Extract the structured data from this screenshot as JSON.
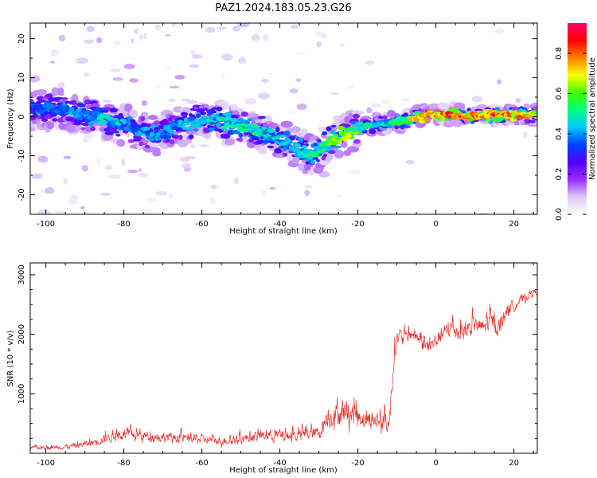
{
  "chart_data": [
    {
      "type": "heatmap",
      "title": "PAZ1.2024.183.05.23.G26",
      "xlabel": "Height of straight line (km)",
      "ylabel": "Frequency (Hz)",
      "xlim": [
        -104,
        26
      ],
      "ylim": [
        -25,
        24
      ],
      "x_ticks": [
        -100,
        -80,
        -60,
        -40,
        -20,
        0,
        20
      ],
      "y_ticks": [
        -20,
        -10,
        0,
        10,
        20
      ],
      "colorbar": {
        "label": "Normalized spectral amplitude",
        "range": [
          0,
          0.95
        ],
        "ticks": [
          0.0,
          0.2,
          0.4,
          0.6,
          0.8
        ],
        "colormap": [
          "#ffffff",
          "#dcc8f5",
          "#9a2cff",
          "#5000ff",
          "#0040ff",
          "#00c8ff",
          "#00ff80",
          "#40ff00",
          "#ffff00",
          "#ff8000",
          "#ff0000",
          "#ff0066"
        ]
      },
      "ridge": {
        "x": [
          -104,
          -100,
          -96,
          -92,
          -88,
          -84,
          -80,
          -76,
          -72,
          -68,
          -64,
          -60,
          -56,
          -52,
          -48,
          -44,
          -40,
          -36,
          -32,
          -30,
          -28,
          -24,
          -20,
          -16,
          -12,
          -8,
          -4,
          0,
          4,
          8,
          12,
          16,
          20,
          24,
          26
        ],
        "y": [
          1.5,
          2,
          2.5,
          1,
          0,
          -1,
          -2,
          -3.5,
          -5,
          -3,
          -2,
          -0.5,
          -1,
          -2,
          -3,
          -4,
          -5.5,
          -7.5,
          -10,
          -9,
          -6.5,
          -5,
          -3,
          -2,
          -1.5,
          -1,
          0,
          0.5,
          0.5,
          0.3,
          0.3,
          0.5,
          0.5,
          0.5,
          0.5
        ],
        "amp": [
          0.35,
          0.38,
          0.4,
          0.42,
          0.45,
          0.48,
          0.45,
          0.42,
          0.45,
          0.42,
          0.45,
          0.45,
          0.48,
          0.5,
          0.55,
          0.5,
          0.45,
          0.48,
          0.5,
          0.52,
          0.6,
          0.72,
          0.6,
          0.5,
          0.5,
          0.65,
          0.8,
          0.85,
          0.88,
          0.82,
          0.88,
          0.85,
          0.82,
          0.75,
          0.7
        ]
      }
    },
    {
      "type": "line",
      "xlabel": "Height of straight line (km)",
      "ylabel": "SNR (10 * v/v)",
      "xlim": [
        -104,
        26
      ],
      "ylim": [
        0,
        3200
      ],
      "x_ticks": [
        -100,
        -80,
        -60,
        -40,
        -20,
        0,
        20
      ],
      "y_ticks": [
        1000,
        2000,
        3000
      ],
      "color": "#e8302a",
      "envelope": {
        "x": [
          -104,
          -96,
          -92,
          -88,
          -84,
          -80,
          -76,
          -72,
          -68,
          -64,
          -60,
          -56,
          -52,
          -48,
          -44,
          -40,
          -36,
          -32,
          -30,
          -28,
          -26,
          -24,
          -22,
          -20,
          -18,
          -16,
          -14,
          -12,
          -11,
          -10,
          -8,
          -6,
          -4,
          -2,
          0,
          2,
          4,
          6,
          8,
          10,
          12,
          14,
          16,
          18,
          20,
          22,
          24,
          26
        ],
        "base": [
          80,
          90,
          110,
          150,
          230,
          280,
          260,
          250,
          230,
          220,
          200,
          180,
          190,
          230,
          260,
          240,
          260,
          280,
          300,
          520,
          560,
          600,
          600,
          560,
          500,
          480,
          460,
          420,
          1400,
          1900,
          1900,
          1950,
          1850,
          1700,
          1850,
          1950,
          2050,
          1950,
          2000,
          2100,
          2050,
          2150,
          2050,
          2350,
          2450,
          2550,
          2650,
          2700
        ],
        "amp": [
          90,
          110,
          150,
          200,
          260,
          300,
          280,
          260,
          260,
          250,
          230,
          220,
          240,
          260,
          280,
          350,
          300,
          320,
          350,
          500,
          650,
          700,
          650,
          600,
          500,
          500,
          550,
          500,
          700,
          400,
          350,
          350,
          380,
          420,
          450,
          420,
          480,
          500,
          480,
          420,
          480,
          500,
          450,
          380,
          300,
          250,
          200,
          150
        ]
      }
    }
  ]
}
